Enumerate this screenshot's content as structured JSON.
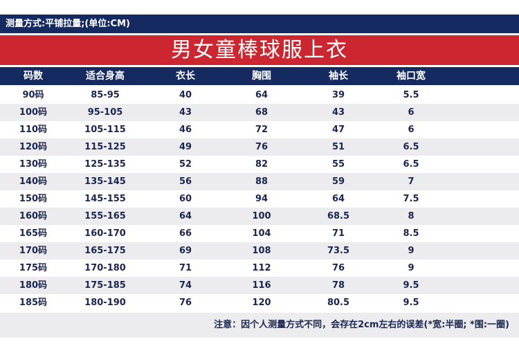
{
  "measure_method": "测量方式:平铺拉量;(单位:CM)",
  "title": "男女童棒球服上衣",
  "headers": [
    "码数",
    "适合身高",
    "衣长",
    "胸围",
    "袖长",
    "袖口宽"
  ],
  "rows": [
    [
      "90码",
      "85-95",
      "40",
      "64",
      "39",
      "5.5"
    ],
    [
      "100码",
      "95-105",
      "43",
      "68",
      "43",
      "6"
    ],
    [
      "110码",
      "105-115",
      "46",
      "72",
      "47",
      "6"
    ],
    [
      "120码",
      "115-125",
      "49",
      "76",
      "51",
      "6.5"
    ],
    [
      "130码",
      "125-135",
      "52",
      "82",
      "55",
      "6.5"
    ],
    [
      "140码",
      "135-145",
      "56",
      "88",
      "59",
      "7"
    ],
    [
      "150码",
      "145-155",
      "60",
      "94",
      "64",
      "7.5"
    ],
    [
      "160码",
      "155-165",
      "64",
      "100",
      "68.5",
      "8"
    ],
    [
      "165码",
      "160-170",
      "66",
      "104",
      "71",
      "8.5"
    ],
    [
      "170码",
      "165-175",
      "69",
      "108",
      "73.5",
      "9"
    ],
    [
      "175码",
      "170-180",
      "71",
      "112",
      "76",
      "9"
    ],
    [
      "180码",
      "175-185",
      "74",
      "116",
      "78",
      "9.5"
    ],
    [
      "185码",
      "180-190",
      "76",
      "120",
      "80.5",
      "9.5"
    ]
  ],
  "note": "注意：因个人测量方式不同，会存在2cm左右的误差(*宽:半圈; *围:一圈)",
  "colors": {
    "navy": "#142a60",
    "red": "#cc2630",
    "stripe": "#ececee",
    "text": "#1a2550"
  }
}
